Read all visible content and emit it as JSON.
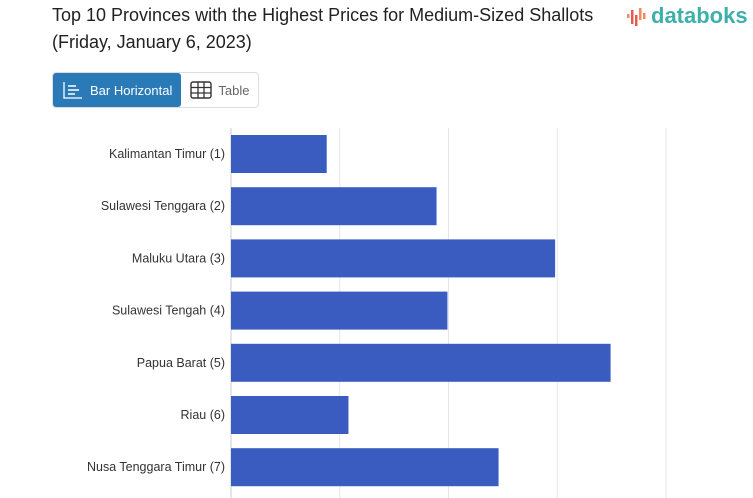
{
  "title": "Top 10 Provinces with the Highest Prices for Medium-Sized Shallots (Friday, January 6, 2023)",
  "logo": "databoks",
  "view_toggle": {
    "bar_label": "Bar Horizontal",
    "table_label": "Table"
  },
  "chart_data": {
    "type": "bar",
    "orientation": "horizontal",
    "title": "Top 10 Provinces with the Highest Prices for Medium-Sized Shallots (Friday, January 6, 2023)",
    "categories": [
      "Kalimantan Timur (1)",
      "Sulawesi Tenggara (2)",
      "Maluku Utara (3)",
      "Sulawesi Tengah (4)",
      "Papua Barat (5)",
      "Riau (6)",
      "Nusa Tenggara Timur (7)"
    ],
    "values": [
      0.88,
      1.89,
      2.98,
      1.99,
      3.49,
      1.08,
      2.46
    ],
    "value_units": "relative (gridline intervals; axis labels not visible)",
    "xlim": [
      0,
      4.68
    ],
    "grid": true,
    "bar_color": "#3a5bbf"
  }
}
